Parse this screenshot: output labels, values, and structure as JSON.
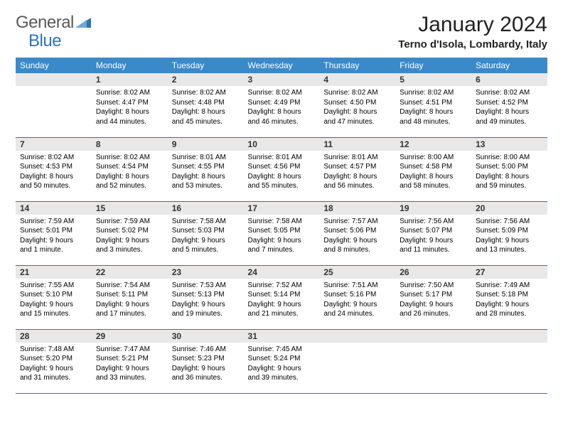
{
  "logo": {
    "text1": "General",
    "text2": "Blue"
  },
  "title": "January 2024",
  "location": "Terno d'Isola, Lombardy, Italy",
  "colors": {
    "header_bg": "#3a89c9",
    "header_text": "#ffffff",
    "daynum_bg": "#e8e8e8",
    "border": "#2a74b8",
    "logo_gray": "#5a5a5a",
    "logo_blue": "#2a74b8"
  },
  "weekdays": [
    "Sunday",
    "Monday",
    "Tuesday",
    "Wednesday",
    "Thursday",
    "Friday",
    "Saturday"
  ],
  "weeks": [
    [
      {
        "day": "",
        "lines": [
          "",
          "",
          "",
          ""
        ]
      },
      {
        "day": "1",
        "lines": [
          "Sunrise: 8:02 AM",
          "Sunset: 4:47 PM",
          "Daylight: 8 hours",
          "and 44 minutes."
        ]
      },
      {
        "day": "2",
        "lines": [
          "Sunrise: 8:02 AM",
          "Sunset: 4:48 PM",
          "Daylight: 8 hours",
          "and 45 minutes."
        ]
      },
      {
        "day": "3",
        "lines": [
          "Sunrise: 8:02 AM",
          "Sunset: 4:49 PM",
          "Daylight: 8 hours",
          "and 46 minutes."
        ]
      },
      {
        "day": "4",
        "lines": [
          "Sunrise: 8:02 AM",
          "Sunset: 4:50 PM",
          "Daylight: 8 hours",
          "and 47 minutes."
        ]
      },
      {
        "day": "5",
        "lines": [
          "Sunrise: 8:02 AM",
          "Sunset: 4:51 PM",
          "Daylight: 8 hours",
          "and 48 minutes."
        ]
      },
      {
        "day": "6",
        "lines": [
          "Sunrise: 8:02 AM",
          "Sunset: 4:52 PM",
          "Daylight: 8 hours",
          "and 49 minutes."
        ]
      }
    ],
    [
      {
        "day": "7",
        "lines": [
          "Sunrise: 8:02 AM",
          "Sunset: 4:53 PM",
          "Daylight: 8 hours",
          "and 50 minutes."
        ]
      },
      {
        "day": "8",
        "lines": [
          "Sunrise: 8:02 AM",
          "Sunset: 4:54 PM",
          "Daylight: 8 hours",
          "and 52 minutes."
        ]
      },
      {
        "day": "9",
        "lines": [
          "Sunrise: 8:01 AM",
          "Sunset: 4:55 PM",
          "Daylight: 8 hours",
          "and 53 minutes."
        ]
      },
      {
        "day": "10",
        "lines": [
          "Sunrise: 8:01 AM",
          "Sunset: 4:56 PM",
          "Daylight: 8 hours",
          "and 55 minutes."
        ]
      },
      {
        "day": "11",
        "lines": [
          "Sunrise: 8:01 AM",
          "Sunset: 4:57 PM",
          "Daylight: 8 hours",
          "and 56 minutes."
        ]
      },
      {
        "day": "12",
        "lines": [
          "Sunrise: 8:00 AM",
          "Sunset: 4:58 PM",
          "Daylight: 8 hours",
          "and 58 minutes."
        ]
      },
      {
        "day": "13",
        "lines": [
          "Sunrise: 8:00 AM",
          "Sunset: 5:00 PM",
          "Daylight: 8 hours",
          "and 59 minutes."
        ]
      }
    ],
    [
      {
        "day": "14",
        "lines": [
          "Sunrise: 7:59 AM",
          "Sunset: 5:01 PM",
          "Daylight: 9 hours",
          "and 1 minute."
        ]
      },
      {
        "day": "15",
        "lines": [
          "Sunrise: 7:59 AM",
          "Sunset: 5:02 PM",
          "Daylight: 9 hours",
          "and 3 minutes."
        ]
      },
      {
        "day": "16",
        "lines": [
          "Sunrise: 7:58 AM",
          "Sunset: 5:03 PM",
          "Daylight: 9 hours",
          "and 5 minutes."
        ]
      },
      {
        "day": "17",
        "lines": [
          "Sunrise: 7:58 AM",
          "Sunset: 5:05 PM",
          "Daylight: 9 hours",
          "and 7 minutes."
        ]
      },
      {
        "day": "18",
        "lines": [
          "Sunrise: 7:57 AM",
          "Sunset: 5:06 PM",
          "Daylight: 9 hours",
          "and 8 minutes."
        ]
      },
      {
        "day": "19",
        "lines": [
          "Sunrise: 7:56 AM",
          "Sunset: 5:07 PM",
          "Daylight: 9 hours",
          "and 11 minutes."
        ]
      },
      {
        "day": "20",
        "lines": [
          "Sunrise: 7:56 AM",
          "Sunset: 5:09 PM",
          "Daylight: 9 hours",
          "and 13 minutes."
        ]
      }
    ],
    [
      {
        "day": "21",
        "lines": [
          "Sunrise: 7:55 AM",
          "Sunset: 5:10 PM",
          "Daylight: 9 hours",
          "and 15 minutes."
        ]
      },
      {
        "day": "22",
        "lines": [
          "Sunrise: 7:54 AM",
          "Sunset: 5:11 PM",
          "Daylight: 9 hours",
          "and 17 minutes."
        ]
      },
      {
        "day": "23",
        "lines": [
          "Sunrise: 7:53 AM",
          "Sunset: 5:13 PM",
          "Daylight: 9 hours",
          "and 19 minutes."
        ]
      },
      {
        "day": "24",
        "lines": [
          "Sunrise: 7:52 AM",
          "Sunset: 5:14 PM",
          "Daylight: 9 hours",
          "and 21 minutes."
        ]
      },
      {
        "day": "25",
        "lines": [
          "Sunrise: 7:51 AM",
          "Sunset: 5:16 PM",
          "Daylight: 9 hours",
          "and 24 minutes."
        ]
      },
      {
        "day": "26",
        "lines": [
          "Sunrise: 7:50 AM",
          "Sunset: 5:17 PM",
          "Daylight: 9 hours",
          "and 26 minutes."
        ]
      },
      {
        "day": "27",
        "lines": [
          "Sunrise: 7:49 AM",
          "Sunset: 5:18 PM",
          "Daylight: 9 hours",
          "and 28 minutes."
        ]
      }
    ],
    [
      {
        "day": "28",
        "lines": [
          "Sunrise: 7:48 AM",
          "Sunset: 5:20 PM",
          "Daylight: 9 hours",
          "and 31 minutes."
        ]
      },
      {
        "day": "29",
        "lines": [
          "Sunrise: 7:47 AM",
          "Sunset: 5:21 PM",
          "Daylight: 9 hours",
          "and 33 minutes."
        ]
      },
      {
        "day": "30",
        "lines": [
          "Sunrise: 7:46 AM",
          "Sunset: 5:23 PM",
          "Daylight: 9 hours",
          "and 36 minutes."
        ]
      },
      {
        "day": "31",
        "lines": [
          "Sunrise: 7:45 AM",
          "Sunset: 5:24 PM",
          "Daylight: 9 hours",
          "and 39 minutes."
        ]
      },
      {
        "day": "",
        "lines": [
          "",
          "",
          "",
          ""
        ]
      },
      {
        "day": "",
        "lines": [
          "",
          "",
          "",
          ""
        ]
      },
      {
        "day": "",
        "lines": [
          "",
          "",
          "",
          ""
        ]
      }
    ]
  ]
}
